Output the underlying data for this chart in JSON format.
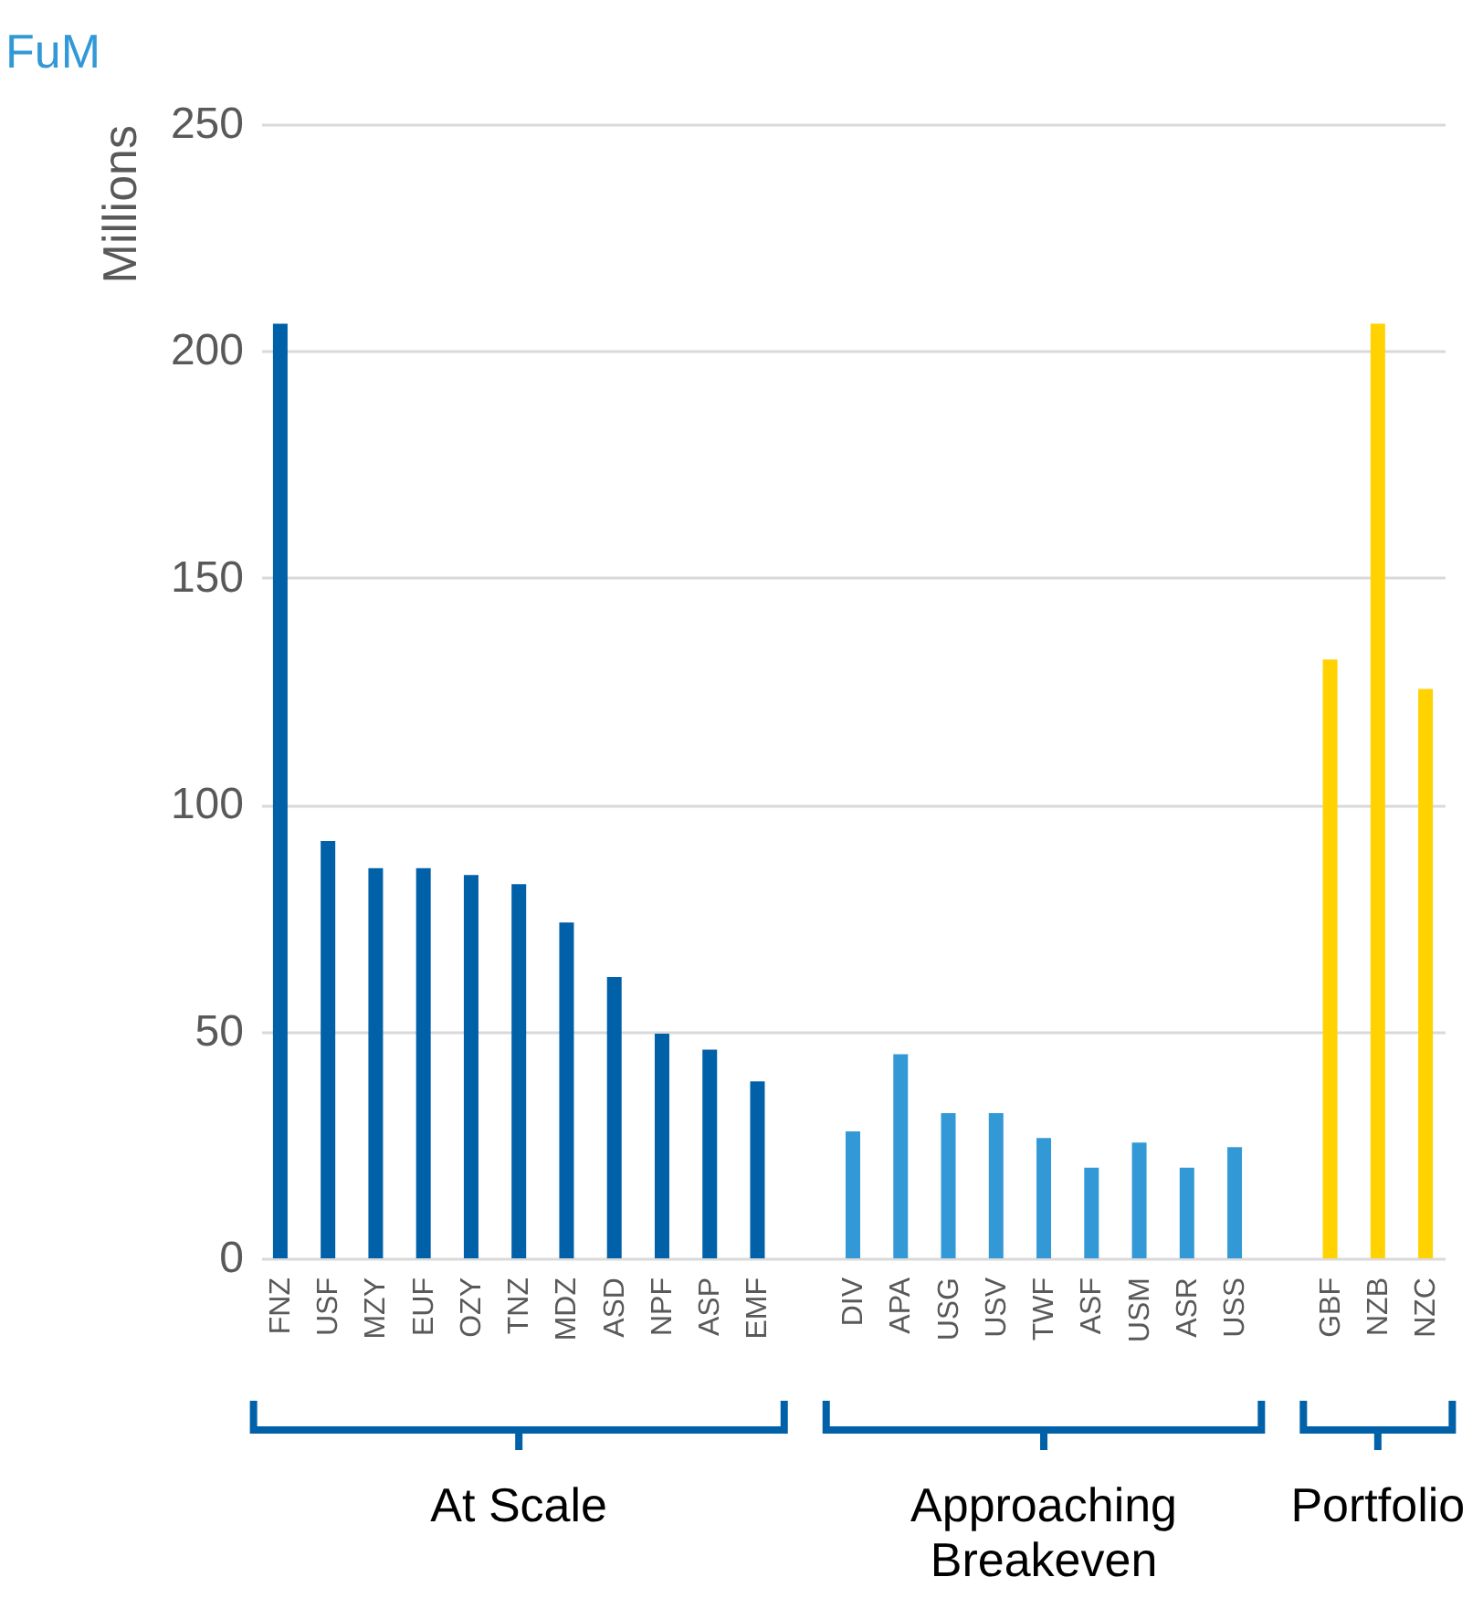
{
  "chart_data": {
    "type": "bar",
    "title": "FuM",
    "ylabel": "Millions",
    "categories": [
      "FNZ",
      "USF",
      "MZY",
      "EUF",
      "OZY",
      "TNZ",
      "MDZ",
      "ASD",
      "NPF",
      "ASP",
      "EMF",
      null,
      "DIV",
      "APA",
      "USG",
      "USV",
      "TWF",
      "ASF",
      "USM",
      "ASR",
      "USS",
      null,
      "GBF",
      "NZB",
      "NZC"
    ],
    "series": [
      {
        "color": "#0060a8",
        "values": [
          206,
          92,
          86,
          86,
          84.5,
          82.5,
          74,
          62,
          49.5,
          46,
          39,
          null,
          null,
          null,
          null,
          null,
          null,
          null,
          null,
          null,
          null,
          null,
          null,
          null,
          null
        ]
      },
      {
        "color": "#3399d6",
        "values": [
          null,
          null,
          null,
          null,
          null,
          null,
          null,
          null,
          null,
          null,
          null,
          null,
          28,
          45,
          32,
          32,
          26.5,
          20,
          25.5,
          20,
          24.5,
          null,
          null,
          null,
          null
        ]
      },
      {
        "color": "#ffd200",
        "values": [
          null,
          null,
          null,
          null,
          null,
          null,
          null,
          null,
          null,
          null,
          null,
          null,
          null,
          null,
          null,
          null,
          null,
          null,
          null,
          null,
          null,
          null,
          132,
          206,
          125.5
        ]
      }
    ],
    "annotations": [
      "At Scale",
      "Approaching\nBreakeven",
      "Portfolio"
    ],
    "ylim": [
      0,
      250
    ],
    "yticks": [
      0,
      50,
      100,
      150,
      200,
      250
    ],
    "grid": "y"
  }
}
